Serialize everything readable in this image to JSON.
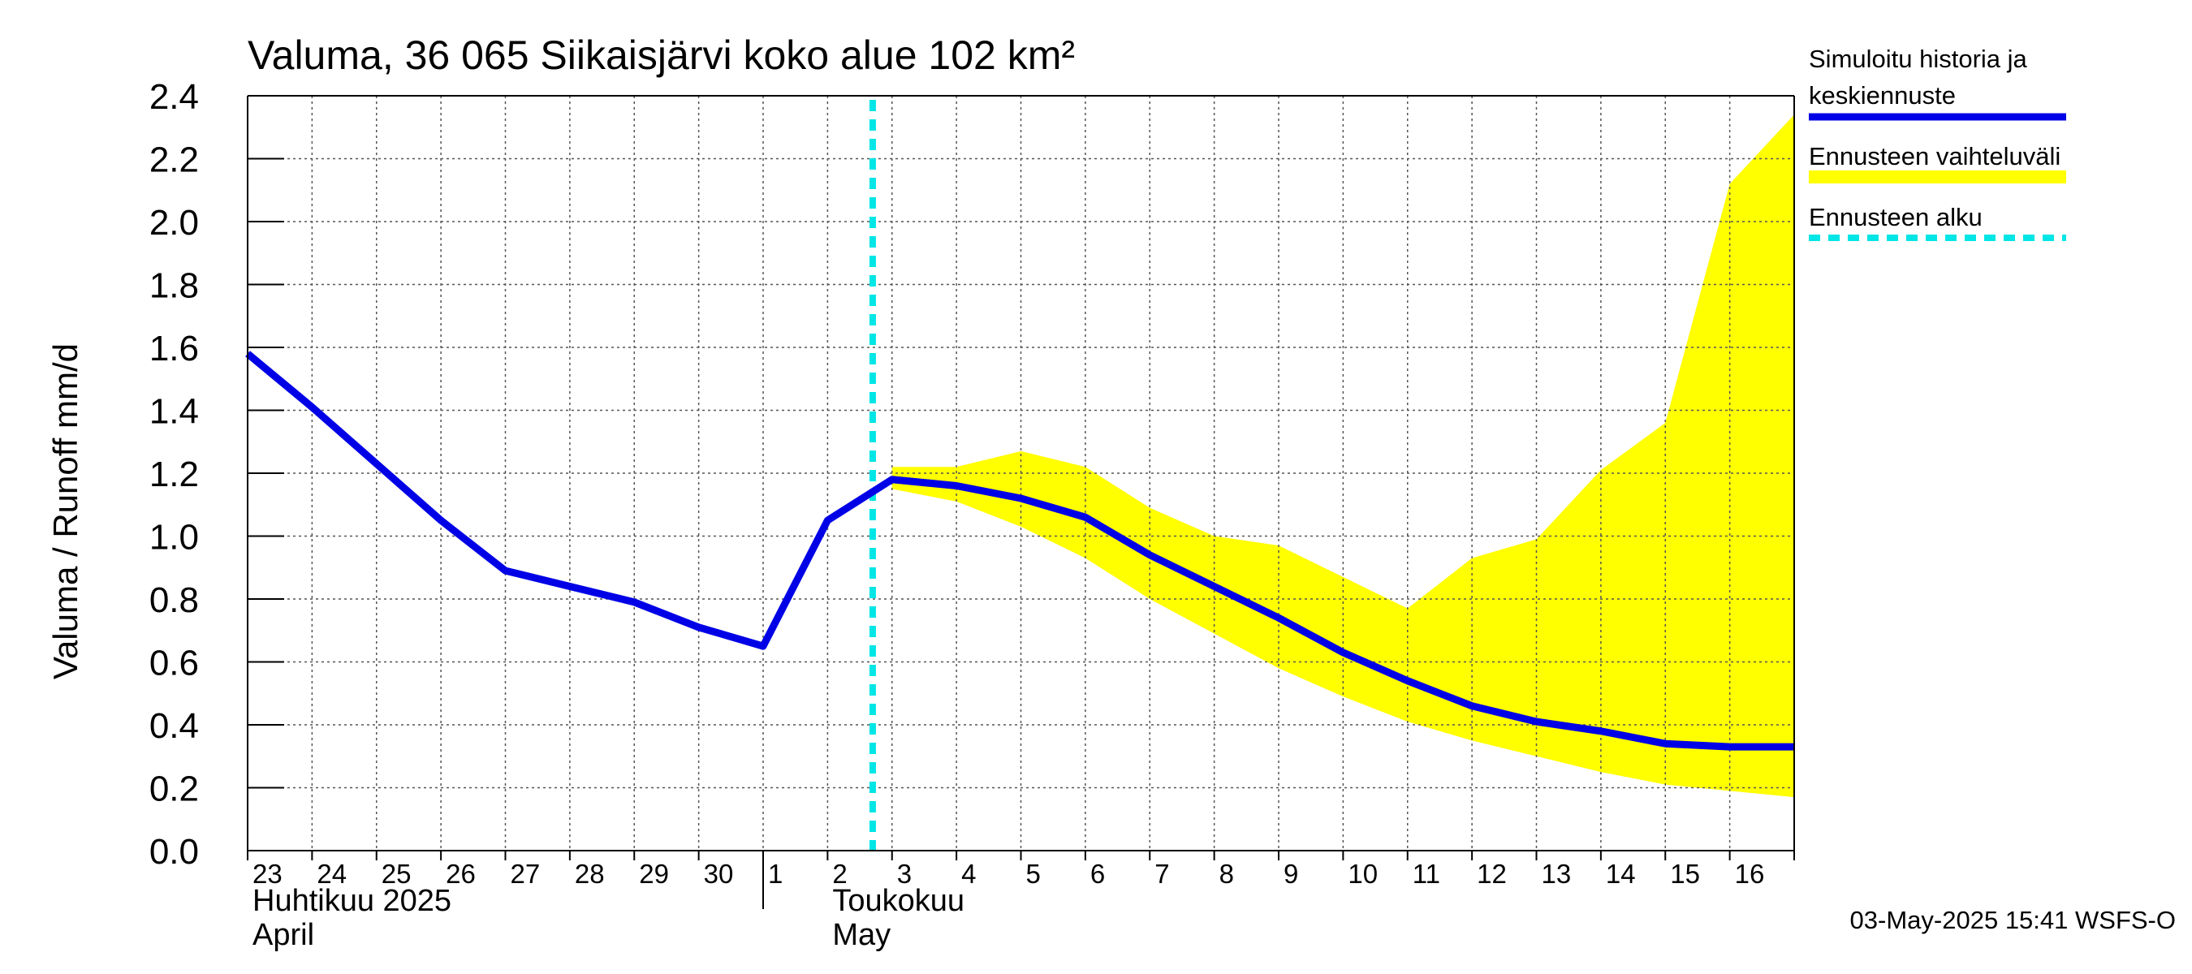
{
  "chart_data": {
    "type": "line",
    "title": "Valuma, 36 065 Siikaisjärvi koko alue 102 km²",
    "ylabel": "Valuma / Runoff    mm/d",
    "ylim": [
      0,
      2.4
    ],
    "yticks": [
      "0.0",
      "0.2",
      "0.4",
      "0.6",
      "0.8",
      "1.0",
      "1.2",
      "1.4",
      "1.6",
      "1.8",
      "2.0",
      "2.2",
      "2.4"
    ],
    "xlim": [
      "2025-04-23",
      "2025-05-17"
    ],
    "day_labels": [
      "23",
      "24",
      "25",
      "26",
      "27",
      "28",
      "29",
      "30",
      "1",
      "2",
      "3",
      "4",
      "5",
      "6",
      "7",
      "8",
      "9",
      "10",
      "11",
      "12",
      "13",
      "14",
      "15",
      "16"
    ],
    "month_labels": [
      {
        "fi": "Huhtikuu  2025",
        "en": "April"
      },
      {
        "fi": "Toukokuu",
        "en": "May"
      }
    ],
    "grid": true,
    "forecast_start": "2025-05-03",
    "series": [
      {
        "name": "Simuloitu historia ja keskiennuste",
        "color": "#0000e6",
        "x": [
          "2025-04-23",
          "2025-04-24",
          "2025-04-25",
          "2025-04-26",
          "2025-04-27",
          "2025-04-28",
          "2025-04-29",
          "2025-04-30",
          "2025-05-01",
          "2025-05-02",
          "2025-05-03",
          "2025-05-04",
          "2025-05-05",
          "2025-05-06",
          "2025-05-07",
          "2025-05-08",
          "2025-05-09",
          "2025-05-10",
          "2025-05-11",
          "2025-05-12",
          "2025-05-13",
          "2025-05-14",
          "2025-05-15",
          "2025-05-16",
          "2025-05-17"
        ],
        "values": [
          1.58,
          1.41,
          1.23,
          1.05,
          0.89,
          0.84,
          0.79,
          0.71,
          0.65,
          1.05,
          1.18,
          1.16,
          1.12,
          1.06,
          0.94,
          0.84,
          0.74,
          0.63,
          0.54,
          0.46,
          0.41,
          0.38,
          0.34,
          0.33,
          0.33
        ]
      }
    ],
    "band": {
      "name": "Ennusteen vaihteluväli",
      "color": "#ffff00",
      "x": [
        "2025-05-03",
        "2025-05-04",
        "2025-05-05",
        "2025-05-06",
        "2025-05-07",
        "2025-05-08",
        "2025-05-09",
        "2025-05-10",
        "2025-05-11",
        "2025-05-12",
        "2025-05-13",
        "2025-05-14",
        "2025-05-15",
        "2025-05-16",
        "2025-05-17"
      ],
      "upper": [
        1.22,
        1.22,
        1.27,
        1.22,
        1.09,
        1.0,
        0.97,
        0.87,
        0.77,
        0.93,
        0.99,
        1.21,
        1.36,
        2.12,
        2.34
      ],
      "lower": [
        1.15,
        1.11,
        1.03,
        0.93,
        0.8,
        0.69,
        0.58,
        0.49,
        0.41,
        0.35,
        0.3,
        0.25,
        0.21,
        0.19,
        0.17
      ]
    },
    "legend": {
      "placement": "right",
      "entries": [
        {
          "label_lines": [
            "Simuloitu historia ja",
            "keskiennuste"
          ],
          "style": "line",
          "color": "#0000e6"
        },
        {
          "label_lines": [
            "Ennusteen vaihteluväli"
          ],
          "style": "band",
          "color": "#ffff00"
        },
        {
          "label_lines": [
            "Ennusteen alku"
          ],
          "style": "dashed",
          "color": "#00e5e5"
        }
      ]
    },
    "footer": "03-May-2025 15:41 WSFS-O"
  }
}
